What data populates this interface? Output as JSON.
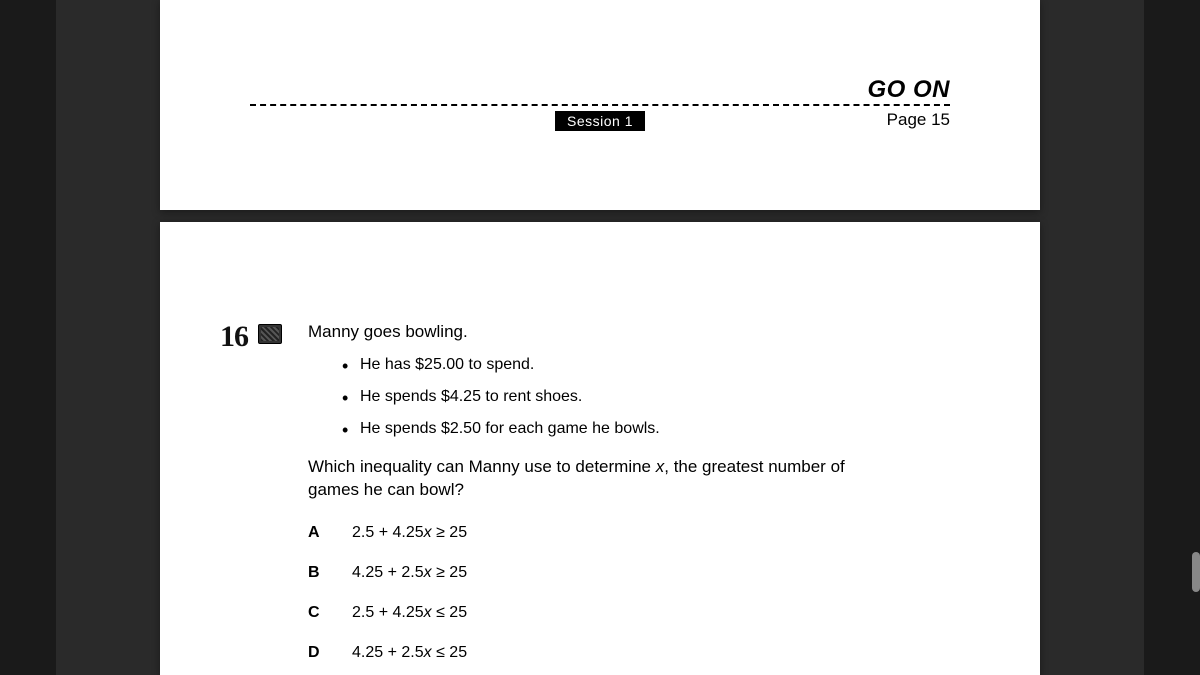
{
  "colors": {
    "viewer_bg": "#2a2a2a",
    "sidebar_bg": "#1a1a1a",
    "page_bg": "#ffffff",
    "text": "#000000",
    "session_bg": "#000000",
    "session_fg": "#ffffff"
  },
  "footer": {
    "go_on": "GO ON",
    "session": "Session 1",
    "page": "Page 15"
  },
  "question": {
    "number_handwritten": "16",
    "stem": "Manny goes bowling.",
    "bullets": [
      "He has $25.00 to spend.",
      "He spends $4.25 to rent shoes.",
      "He spends $2.50 for each game he bowls."
    ],
    "prompt_pre": "Which inequality can Manny use to determine ",
    "prompt_var": "x",
    "prompt_post": ", the greatest number of games he can bowl?",
    "choices": [
      {
        "label": "A",
        "lhs_a": "2.5 + 4.25",
        "var": "x",
        "op": " ≥ 25"
      },
      {
        "label": "B",
        "lhs_a": "4.25 + 2.5",
        "var": "x",
        "op": " ≥ 25"
      },
      {
        "label": "C",
        "lhs_a": "2.5 + 4.25",
        "var": "x",
        "op": " ≤ 25"
      },
      {
        "label": "D",
        "lhs_a": "4.25 + 2.5",
        "var": "x",
        "op": " ≤ 25"
      }
    ]
  }
}
